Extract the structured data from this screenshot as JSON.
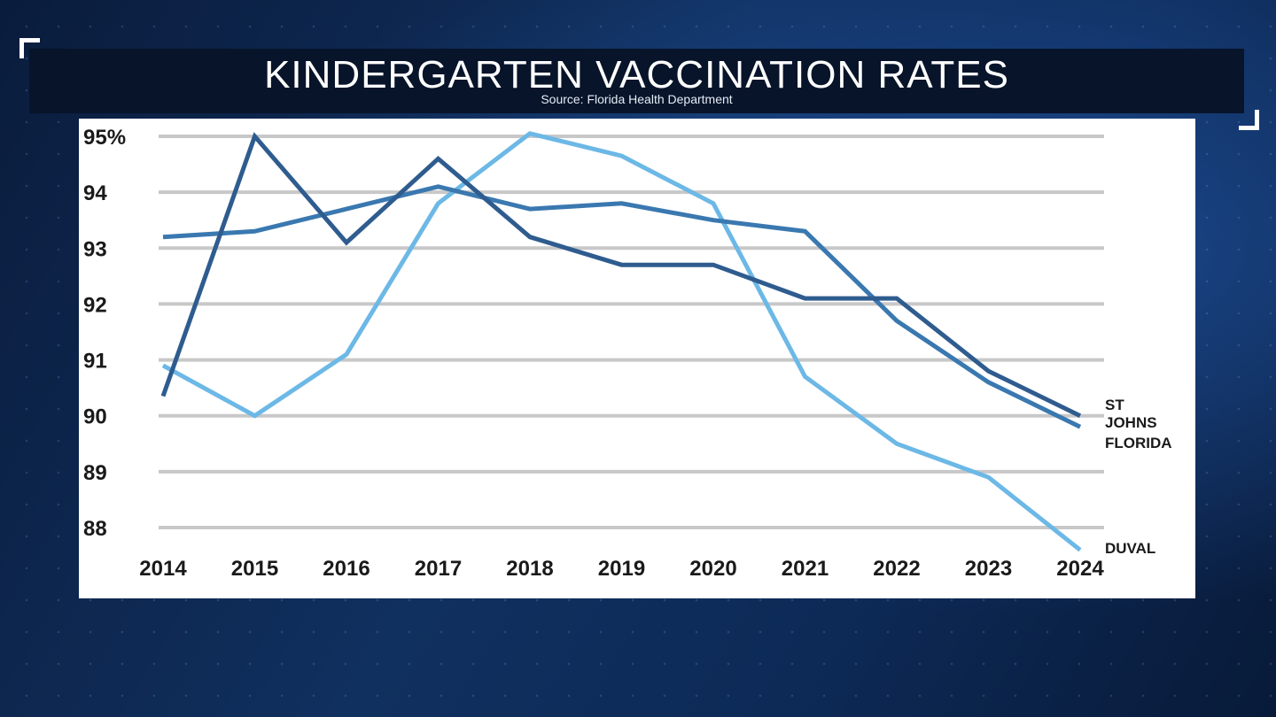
{
  "header": {
    "title": "KINDERGARTEN VACCINATION RATES",
    "source": "Source: Florida Health Department"
  },
  "colors": {
    "st_johns": "#2f5c8f",
    "florida": "#3a78b0",
    "duval": "#6cb8e6",
    "grid": "#c8c8c8",
    "text": "#1a1a1a"
  },
  "chart_data": {
    "type": "line",
    "title": "KINDERGARTEN VACCINATION RATES",
    "subtitle": "Source: Florida Health Department",
    "xlabel": "",
    "ylabel": "",
    "x": [
      "2014",
      "2015",
      "2016",
      "2017",
      "2018",
      "2019",
      "2020",
      "2021",
      "2022",
      "2023",
      "2024"
    ],
    "ylim": [
      87.6,
      95.05
    ],
    "yticks": [
      95,
      94,
      93,
      92,
      91,
      90,
      89,
      88
    ],
    "ytick_labels": [
      "95%",
      "94",
      "93",
      "92",
      "91",
      "90",
      "89",
      "88"
    ],
    "grid": true,
    "legend": "inline labels at right end of lines",
    "series": [
      {
        "name": "ST JOHNS",
        "label_lines": [
          "ST",
          "JOHNS"
        ],
        "color_key": "st_johns",
        "values": [
          90.35,
          95.0,
          93.1,
          94.6,
          93.2,
          92.7,
          92.7,
          92.1,
          92.1,
          90.8,
          90.0
        ]
      },
      {
        "name": "FLORIDA",
        "label_lines": [
          "FLORIDA"
        ],
        "color_key": "florida",
        "values": [
          93.2,
          93.3,
          93.7,
          94.1,
          93.7,
          93.8,
          93.5,
          93.3,
          91.7,
          90.6,
          89.8
        ]
      },
      {
        "name": "DUVAL",
        "label_lines": [
          "DUVAL"
        ],
        "color_key": "duval",
        "values": [
          90.9,
          90.0,
          91.1,
          93.8,
          95.05,
          94.65,
          93.8,
          90.7,
          89.5,
          88.9,
          87.6
        ]
      }
    ]
  }
}
